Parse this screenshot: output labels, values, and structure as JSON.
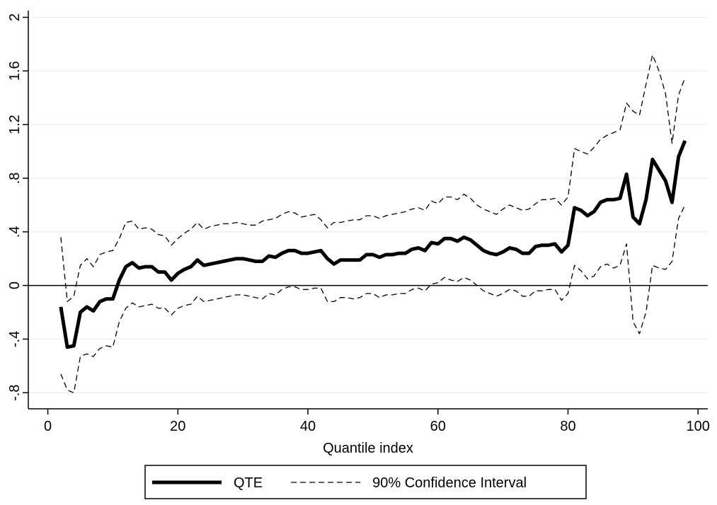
{
  "chart_data": {
    "type": "line",
    "x_label": "Quantile index",
    "x": [
      2,
      3,
      4,
      5,
      6,
      7,
      8,
      9,
      10,
      11,
      12,
      13,
      14,
      15,
      16,
      17,
      18,
      19,
      20,
      21,
      22,
      23,
      24,
      25,
      26,
      27,
      28,
      29,
      30,
      31,
      32,
      33,
      34,
      35,
      36,
      37,
      38,
      39,
      40,
      41,
      42,
      43,
      44,
      45,
      46,
      47,
      48,
      49,
      50,
      51,
      52,
      53,
      54,
      55,
      56,
      57,
      58,
      59,
      60,
      61,
      62,
      63,
      64,
      65,
      66,
      67,
      68,
      69,
      70,
      71,
      72,
      73,
      74,
      75,
      76,
      77,
      78,
      79,
      80,
      81,
      82,
      83,
      84,
      85,
      86,
      87,
      88,
      89,
      90,
      91,
      92,
      93,
      94,
      95,
      96,
      97,
      98
    ],
    "series": [
      {
        "name": "QTE",
        "color": "#000000",
        "line_style": "solid",
        "values": [
          -0.16,
          -0.46,
          -0.45,
          -0.2,
          -0.16,
          -0.19,
          -0.12,
          -0.1,
          -0.1,
          0.04,
          0.14,
          0.17,
          0.13,
          0.14,
          0.14,
          0.1,
          0.1,
          0.04,
          0.09,
          0.12,
          0.14,
          0.19,
          0.15,
          0.16,
          0.17,
          0.18,
          0.19,
          0.2,
          0.2,
          0.19,
          0.18,
          0.18,
          0.22,
          0.21,
          0.24,
          0.26,
          0.26,
          0.24,
          0.24,
          0.25,
          0.26,
          0.2,
          0.16,
          0.19,
          0.19,
          0.19,
          0.19,
          0.23,
          0.23,
          0.21,
          0.23,
          0.23,
          0.24,
          0.24,
          0.27,
          0.28,
          0.26,
          0.32,
          0.31,
          0.35,
          0.35,
          0.33,
          0.36,
          0.34,
          0.3,
          0.26,
          0.24,
          0.23,
          0.25,
          0.28,
          0.27,
          0.24,
          0.24,
          0.29,
          0.3,
          0.3,
          0.31,
          0.25,
          0.3,
          0.58,
          0.56,
          0.52,
          0.55,
          0.62,
          0.64,
          0.64,
          0.65,
          0.83,
          0.51,
          0.46,
          0.64,
          0.94,
          0.86,
          0.78,
          0.62,
          0.96,
          1.08
        ]
      },
      {
        "name": "90% Confidence Interval",
        "color": "#000000",
        "line_style": "dashed",
        "values": [
          0.36,
          -0.12,
          -0.08,
          0.15,
          0.2,
          0.14,
          0.23,
          0.25,
          0.26,
          0.35,
          0.47,
          0.48,
          0.42,
          0.43,
          0.42,
          0.38,
          0.37,
          0.3,
          0.35,
          0.39,
          0.42,
          0.47,
          0.42,
          0.44,
          0.45,
          0.46,
          0.46,
          0.47,
          0.46,
          0.45,
          0.45,
          0.48,
          0.49,
          0.5,
          0.53,
          0.55,
          0.54,
          0.51,
          0.52,
          0.53,
          0.49,
          0.43,
          0.47,
          0.47,
          0.48,
          0.49,
          0.49,
          0.52,
          0.52,
          0.5,
          0.52,
          0.53,
          0.54,
          0.55,
          0.57,
          0.58,
          0.56,
          0.63,
          0.61,
          0.66,
          0.66,
          0.64,
          0.68,
          0.65,
          0.6,
          0.57,
          0.55,
          0.53,
          0.57,
          0.6,
          0.58,
          0.56,
          0.57,
          0.61,
          0.64,
          0.64,
          0.65,
          0.6,
          0.66,
          1.02,
          1.0,
          0.98,
          1.03,
          1.09,
          1.12,
          1.14,
          1.16,
          1.36,
          1.3,
          1.27,
          1.5,
          1.72,
          1.6,
          1.43,
          1.06,
          1.42,
          1.55
        ]
      },
      {
        "color": "#000000",
        "line_style": "dashed",
        "values": [
          -0.66,
          -0.78,
          -0.8,
          -0.53,
          -0.51,
          -0.53,
          -0.47,
          -0.45,
          -0.46,
          -0.27,
          -0.17,
          -0.13,
          -0.16,
          -0.15,
          -0.14,
          -0.17,
          -0.17,
          -0.22,
          -0.17,
          -0.15,
          -0.14,
          -0.08,
          -0.12,
          -0.11,
          -0.1,
          -0.09,
          -0.08,
          -0.07,
          -0.07,
          -0.08,
          -0.09,
          -0.1,
          -0.06,
          -0.07,
          -0.03,
          -0.01,
          -0.01,
          -0.03,
          -0.03,
          -0.02,
          -0.02,
          -0.12,
          -0.12,
          -0.09,
          -0.09,
          -0.1,
          -0.09,
          -0.06,
          -0.06,
          -0.09,
          -0.07,
          -0.07,
          -0.06,
          -0.06,
          -0.03,
          -0.02,
          -0.04,
          0.01,
          0.02,
          0.06,
          0.04,
          0.03,
          0.06,
          0.04,
          0,
          -0.04,
          -0.06,
          -0.08,
          -0.06,
          -0.03,
          -0.04,
          -0.08,
          -0.08,
          -0.04,
          -0.04,
          -0.03,
          -0.03,
          -0.11,
          -0.06,
          0.15,
          0.11,
          0.05,
          0.07,
          0.14,
          0.16,
          0.13,
          0.15,
          0.31,
          -0.27,
          -0.36,
          -0.2,
          0.15,
          0.13,
          0.12,
          0.18,
          0.5,
          0.6
        ]
      }
    ],
    "xlim": [
      -3,
      101.5
    ],
    "xticks": [
      0,
      20,
      40,
      60,
      80,
      100
    ],
    "ylim": [
      -0.92,
      2.05
    ],
    "yticks": [
      {
        "value": -0.8,
        "label": "-.8"
      },
      {
        "value": -0.4,
        "label": "-.4"
      },
      0,
      {
        "value": 0.4,
        "label": ".4"
      },
      {
        "value": 0.8,
        "label": ".8"
      },
      {
        "value": 1.2,
        "label": "1.2"
      },
      {
        "value": 1.6,
        "label": "1.6"
      },
      2
    ],
    "hline": 0,
    "grid": true,
    "grid_color": "#eaf2f3",
    "legend_position": "bottom"
  }
}
